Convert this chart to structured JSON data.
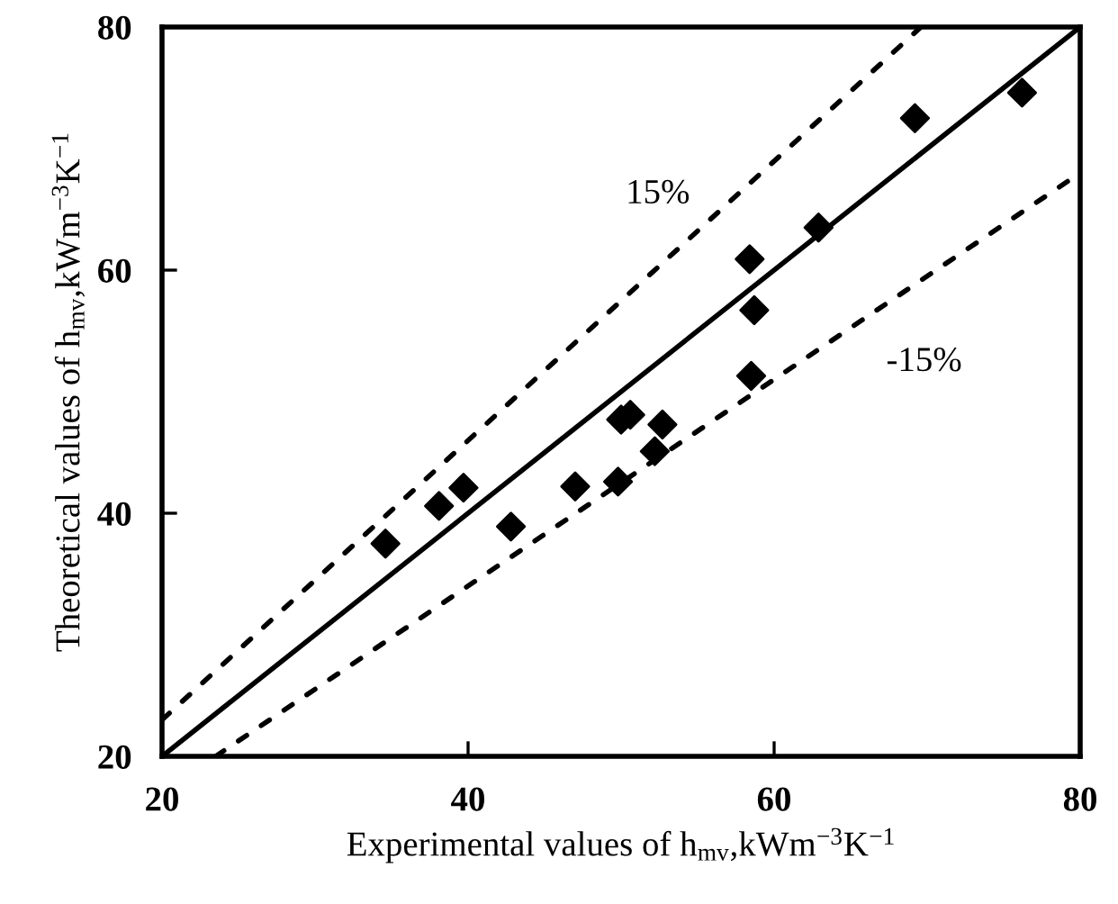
{
  "chart_data": {
    "type": "scatter",
    "xlabel": "Experimental values of h$_{mv}$,kWm$^{−3}$K$^{−1}$",
    "ylabel": "Theoretical values of h$_{mv}$,kWm$^{−3}$K$^{−1}$",
    "xlim": [
      20,
      80
    ],
    "ylim": [
      20,
      80
    ],
    "xticks": [
      20,
      40,
      60,
      80
    ],
    "yticks": [
      20,
      40,
      60,
      80
    ],
    "grid": false,
    "legend": false,
    "series": [
      {
        "color": "#000000",
        "marker": "diamond",
        "x": [
          34.6,
          38.1,
          39.7,
          42.8,
          47.0,
          49.8,
          50.0,
          50.6,
          52.7,
          52.2,
          58.4,
          58.7,
          58.5,
          62.9,
          69.2,
          76.2
        ],
        "values": [
          37.5,
          40.6,
          42.1,
          38.9,
          42.2,
          42.6,
          47.7,
          48.1,
          47.3,
          45.1,
          60.9,
          56.7,
          51.3,
          63.5,
          72.5,
          74.6
        ]
      },
      {
        "type": "line",
        "color": "#000000",
        "line_style": "solid",
        "marker": "none",
        "x": [
          20,
          80
        ],
        "values": [
          20,
          80
        ]
      },
      {
        "type": "line",
        "color": "#000000",
        "line_style": "dotted",
        "marker": "none",
        "x": [
          20,
          69.6
        ],
        "values": [
          23,
          80
        ]
      },
      {
        "type": "line",
        "color": "#000000",
        "line_style": "dotted",
        "marker": "none",
        "x": [
          23.5,
          80
        ],
        "values": [
          20,
          68
        ]
      }
    ],
    "annotations": [
      "15%",
      "-15%"
    ]
  }
}
